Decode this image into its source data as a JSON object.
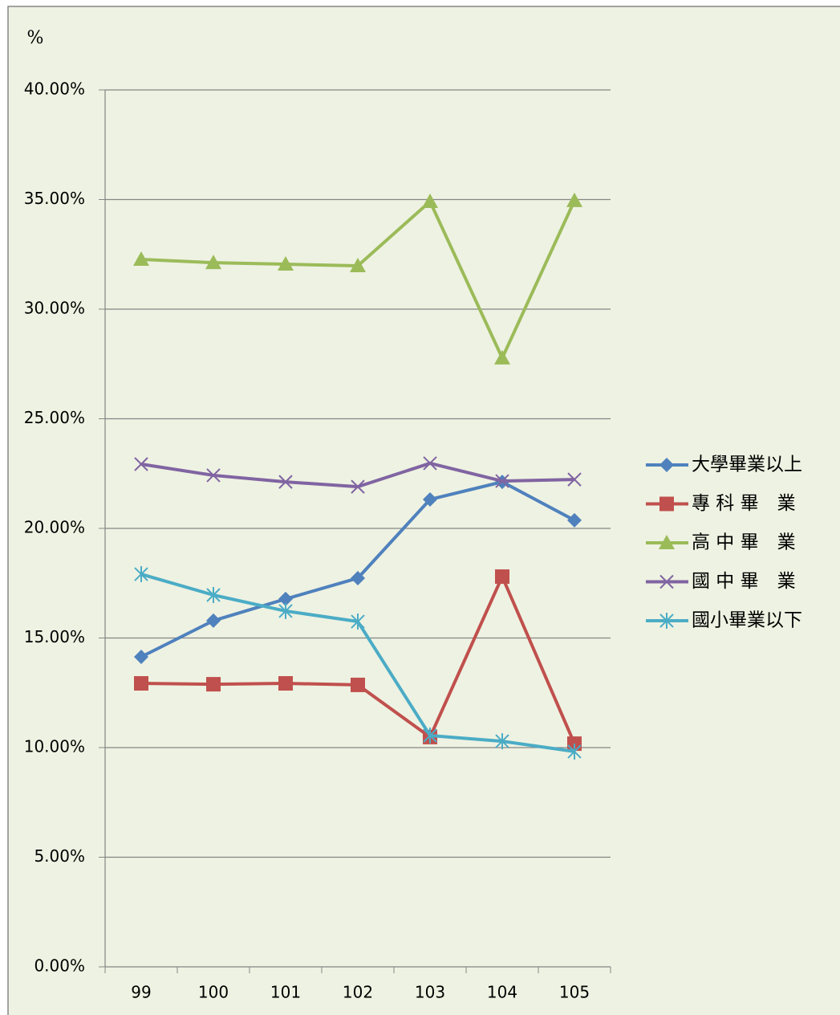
{
  "chart_data": {
    "type": "line",
    "y_label": "%",
    "categories": [
      "99",
      "100",
      "101",
      "102",
      "103",
      "104",
      "105"
    ],
    "series": [
      {
        "name": "大學畢業以上",
        "color": "#4F81BD",
        "marker": "diamond",
        "values": [
          14.14,
          15.79,
          16.78,
          17.73,
          21.32,
          22.12,
          20.37
        ]
      },
      {
        "name": "專 科 畢　業",
        "color": "#C0504D",
        "marker": "square",
        "values": [
          12.93,
          12.89,
          12.93,
          12.86,
          10.48,
          17.8,
          10.18
        ]
      },
      {
        "name": "高 中 畢　業",
        "color": "#9BBB59",
        "marker": "triangle",
        "values": [
          32.27,
          32.12,
          32.05,
          31.98,
          34.91,
          27.77,
          34.95
        ]
      },
      {
        "name": "國 中 畢　業",
        "color": "#8064A2",
        "marker": "x",
        "values": [
          22.93,
          22.42,
          22.12,
          21.9,
          22.97,
          22.16,
          22.23
        ]
      },
      {
        "name": "國小畢業以下",
        "color": "#4BACC6",
        "marker": "asterisk",
        "values": [
          17.91,
          16.96,
          16.23,
          15.75,
          10.55,
          10.29,
          9.82
        ]
      }
    ],
    "ylim": [
      0,
      40
    ],
    "yticks": [
      {
        "value": 0,
        "label": "0.00%"
      },
      {
        "value": 5,
        "label": "5.00%"
      },
      {
        "value": 10,
        "label": "10.00%"
      },
      {
        "value": 15,
        "label": "15.00%"
      },
      {
        "value": 20,
        "label": "20.00%"
      },
      {
        "value": 25,
        "label": "25.00%"
      },
      {
        "value": 30,
        "label": "30.00%"
      },
      {
        "value": 35,
        "label": "35.00%"
      },
      {
        "value": 40,
        "label": "40.00%"
      }
    ],
    "grid": true,
    "legend": "right"
  }
}
